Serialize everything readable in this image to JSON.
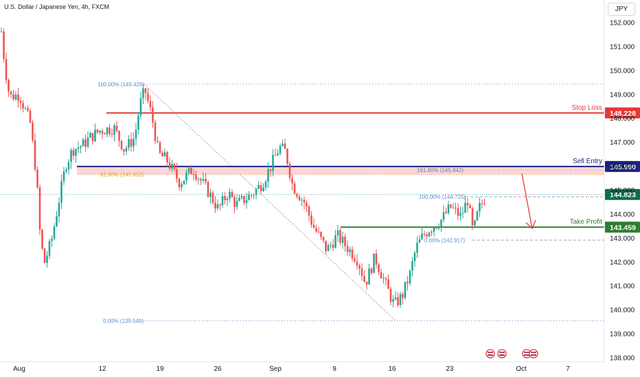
{
  "header": {
    "title": "U.S. Dollar / Japanese Yen, 4h, FXCM",
    "currency_label": "JPY"
  },
  "chart_data": {
    "type": "candlestick",
    "title": "U.S. Dollar / Japanese Yen, 4h, FXCM",
    "ylim": [
      137.7,
      152.9
    ],
    "y_ticks": [
      138.0,
      139.0,
      140.0,
      141.0,
      142.0,
      143.0,
      144.0,
      145.0,
      146.0,
      147.0,
      148.0,
      149.0,
      150.0,
      151.0,
      152.0
    ],
    "x_ticks": [
      "Aug",
      "12",
      "19",
      "26",
      "Sep",
      "9",
      "16",
      "23",
      "Oct",
      "7"
    ],
    "colors": {
      "up": "#26a69a",
      "down": "#ef5350",
      "stop": "#e53935",
      "entry": "#1a237e",
      "profit": "#2e7d32",
      "current": "#0b6e4f",
      "fib": "#5b8bd0",
      "fib_mid": "#e0a030",
      "arrow": "#e53935",
      "zone": "#f9c8c8"
    },
    "levels": [
      {
        "name": "Stop Loss",
        "value": "148.228"
      },
      {
        "name": "Sell Entry",
        "value": "145.990"
      },
      {
        "name": "Take Profit",
        "value": "143.459"
      }
    ],
    "current_price": "144.823",
    "fib_labels": [
      {
        "text": "100.00% (149.426)",
        "value": 149.426
      },
      {
        "text": "61.80% (145.653)",
        "value": 145.653
      },
      {
        "text": "0.00% (139.549)",
        "value": 139.549
      },
      {
        "text": "161.80% (145.842)",
        "value": 145.842
      },
      {
        "text": "100.00% (144.725)",
        "value": 144.725
      },
      {
        "text": "0.00% (142.917)",
        "value": 142.917
      }
    ],
    "candles_anchor_path": [
      [
        0,
        152.2
      ],
      [
        7,
        150.2
      ],
      [
        14,
        148.9
      ],
      [
        28,
        149.0
      ],
      [
        44,
        147.8
      ],
      [
        53,
        145.6
      ],
      [
        58,
        143.3
      ],
      [
        64,
        141.9
      ],
      [
        75,
        142.9
      ],
      [
        86,
        144.6
      ],
      [
        96,
        146.1
      ],
      [
        106,
        146.7
      ],
      [
        121,
        146.9
      ],
      [
        131,
        147.2
      ],
      [
        146,
        147.5
      ],
      [
        166,
        147.6
      ],
      [
        181,
        146.7
      ],
      [
        196,
        147.2
      ],
      [
        204,
        148.6
      ],
      [
        211,
        149.2
      ],
      [
        221,
        148.1
      ],
      [
        231,
        146.5
      ],
      [
        242,
        146.3
      ],
      [
        262,
        145.3
      ],
      [
        281,
        145.9
      ],
      [
        302,
        145.0
      ],
      [
        318,
        144.2
      ],
      [
        332,
        144.9
      ],
      [
        344,
        144.4
      ],
      [
        366,
        144.8
      ],
      [
        382,
        145.3
      ],
      [
        396,
        146.1
      ],
      [
        407,
        146.8
      ],
      [
        416,
        146.6
      ],
      [
        426,
        145.2
      ],
      [
        443,
        144.5
      ],
      [
        456,
        143.5
      ],
      [
        476,
        142.5
      ],
      [
        491,
        143.1
      ],
      [
        506,
        142.6
      ],
      [
        521,
        142.1
      ],
      [
        532,
        141.1
      ],
      [
        546,
        142.2
      ],
      [
        561,
        141.1
      ],
      [
        574,
        140.2
      ],
      [
        586,
        140.6
      ],
      [
        597,
        141.5
      ],
      [
        606,
        142.6
      ],
      [
        616,
        143.1
      ],
      [
        626,
        143.4
      ],
      [
        641,
        143.7
      ],
      [
        656,
        144.3
      ],
      [
        671,
        143.9
      ],
      [
        681,
        144.6
      ],
      [
        689,
        143.2
      ],
      [
        697,
        144.2
      ],
      [
        709,
        144.8
      ]
    ]
  }
}
